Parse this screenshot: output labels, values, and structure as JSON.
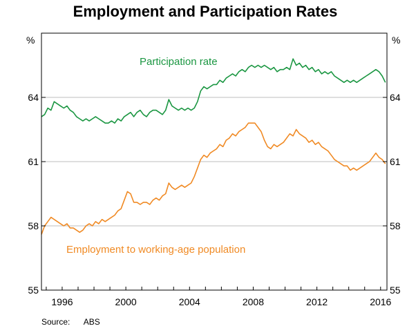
{
  "chart_data": {
    "type": "line",
    "title": "Employment and Participation Rates",
    "y_unit_left": "%",
    "y_unit_right": "%",
    "ylim": [
      55,
      67
    ],
    "yticks": [
      55,
      58,
      61,
      64
    ],
    "xlim": [
      1994.7,
      2016.4
    ],
    "xticks": [
      1996,
      2000,
      2004,
      2008,
      2012,
      2016
    ],
    "grid": true,
    "source": "Source:      ABS",
    "colors": {
      "participation": "#1a9641",
      "employment": "#f08a24"
    },
    "series": [
      {
        "name": "Participation rate",
        "color": "#1a9641",
        "points": [
          [
            1994.7,
            63.1
          ],
          [
            1994.9,
            63.2
          ],
          [
            1995.1,
            63.5
          ],
          [
            1995.3,
            63.4
          ],
          [
            1995.5,
            63.8
          ],
          [
            1995.7,
            63.7
          ],
          [
            1995.9,
            63.6
          ],
          [
            1996.1,
            63.5
          ],
          [
            1996.3,
            63.6
          ],
          [
            1996.5,
            63.4
          ],
          [
            1996.7,
            63.3
          ],
          [
            1996.9,
            63.1
          ],
          [
            1997.1,
            63.0
          ],
          [
            1997.3,
            62.9
          ],
          [
            1997.5,
            63.0
          ],
          [
            1997.7,
            62.9
          ],
          [
            1997.9,
            63.0
          ],
          [
            1998.1,
            63.1
          ],
          [
            1998.3,
            63.0
          ],
          [
            1998.5,
            62.9
          ],
          [
            1998.7,
            62.8
          ],
          [
            1998.9,
            62.8
          ],
          [
            1999.1,
            62.9
          ],
          [
            1999.3,
            62.8
          ],
          [
            1999.5,
            63.0
          ],
          [
            1999.7,
            62.9
          ],
          [
            1999.9,
            63.1
          ],
          [
            2000.1,
            63.2
          ],
          [
            2000.3,
            63.3
          ],
          [
            2000.5,
            63.1
          ],
          [
            2000.7,
            63.3
          ],
          [
            2000.9,
            63.4
          ],
          [
            2001.1,
            63.2
          ],
          [
            2001.3,
            63.1
          ],
          [
            2001.5,
            63.3
          ],
          [
            2001.7,
            63.4
          ],
          [
            2001.9,
            63.4
          ],
          [
            2002.1,
            63.3
          ],
          [
            2002.3,
            63.2
          ],
          [
            2002.5,
            63.4
          ],
          [
            2002.7,
            63.9
          ],
          [
            2002.9,
            63.6
          ],
          [
            2003.1,
            63.5
          ],
          [
            2003.3,
            63.4
          ],
          [
            2003.5,
            63.5
          ],
          [
            2003.7,
            63.4
          ],
          [
            2003.9,
            63.5
          ],
          [
            2004.1,
            63.4
          ],
          [
            2004.3,
            63.5
          ],
          [
            2004.5,
            63.8
          ],
          [
            2004.7,
            64.3
          ],
          [
            2004.9,
            64.5
          ],
          [
            2005.1,
            64.4
          ],
          [
            2005.3,
            64.5
          ],
          [
            2005.5,
            64.6
          ],
          [
            2005.7,
            64.6
          ],
          [
            2005.9,
            64.8
          ],
          [
            2006.1,
            64.7
          ],
          [
            2006.3,
            64.9
          ],
          [
            2006.5,
            65.0
          ],
          [
            2006.7,
            65.1
          ],
          [
            2006.9,
            65.0
          ],
          [
            2007.1,
            65.2
          ],
          [
            2007.3,
            65.3
          ],
          [
            2007.5,
            65.2
          ],
          [
            2007.7,
            65.4
          ],
          [
            2007.9,
            65.5
          ],
          [
            2008.1,
            65.4
          ],
          [
            2008.3,
            65.5
          ],
          [
            2008.5,
            65.4
          ],
          [
            2008.7,
            65.5
          ],
          [
            2008.9,
            65.4
          ],
          [
            2009.1,
            65.3
          ],
          [
            2009.3,
            65.4
          ],
          [
            2009.5,
            65.2
          ],
          [
            2009.7,
            65.3
          ],
          [
            2009.9,
            65.3
          ],
          [
            2010.1,
            65.4
          ],
          [
            2010.3,
            65.3
          ],
          [
            2010.5,
            65.8
          ],
          [
            2010.7,
            65.5
          ],
          [
            2010.9,
            65.6
          ],
          [
            2011.1,
            65.4
          ],
          [
            2011.3,
            65.5
          ],
          [
            2011.5,
            65.3
          ],
          [
            2011.7,
            65.4
          ],
          [
            2011.9,
            65.2
          ],
          [
            2012.1,
            65.3
          ],
          [
            2012.3,
            65.1
          ],
          [
            2012.5,
            65.2
          ],
          [
            2012.7,
            65.1
          ],
          [
            2012.9,
            65.2
          ],
          [
            2013.1,
            65.0
          ],
          [
            2013.3,
            64.9
          ],
          [
            2013.5,
            64.8
          ],
          [
            2013.7,
            64.7
          ],
          [
            2013.9,
            64.8
          ],
          [
            2014.1,
            64.7
          ],
          [
            2014.3,
            64.8
          ],
          [
            2014.5,
            64.7
          ],
          [
            2014.7,
            64.8
          ],
          [
            2014.9,
            64.9
          ],
          [
            2015.1,
            65.0
          ],
          [
            2015.3,
            65.1
          ],
          [
            2015.5,
            65.2
          ],
          [
            2015.7,
            65.3
          ],
          [
            2015.9,
            65.2
          ],
          [
            2016.1,
            65.0
          ],
          [
            2016.3,
            64.7
          ]
        ]
      },
      {
        "name": "Employment to working-age population",
        "color": "#f08a24",
        "points": [
          [
            1994.7,
            57.6
          ],
          [
            1994.9,
            58.0
          ],
          [
            1995.1,
            58.2
          ],
          [
            1995.3,
            58.4
          ],
          [
            1995.5,
            58.3
          ],
          [
            1995.7,
            58.2
          ],
          [
            1995.9,
            58.1
          ],
          [
            1996.1,
            58.0
          ],
          [
            1996.3,
            58.1
          ],
          [
            1996.5,
            57.9
          ],
          [
            1996.7,
            57.9
          ],
          [
            1996.9,
            57.8
          ],
          [
            1997.1,
            57.7
          ],
          [
            1997.3,
            57.8
          ],
          [
            1997.5,
            58.0
          ],
          [
            1997.7,
            58.1
          ],
          [
            1997.9,
            58.0
          ],
          [
            1998.1,
            58.2
          ],
          [
            1998.3,
            58.1
          ],
          [
            1998.5,
            58.3
          ],
          [
            1998.7,
            58.2
          ],
          [
            1998.9,
            58.3
          ],
          [
            1999.1,
            58.4
          ],
          [
            1999.3,
            58.5
          ],
          [
            1999.5,
            58.7
          ],
          [
            1999.7,
            58.8
          ],
          [
            1999.9,
            59.2
          ],
          [
            2000.1,
            59.6
          ],
          [
            2000.3,
            59.5
          ],
          [
            2000.5,
            59.1
          ],
          [
            2000.7,
            59.1
          ],
          [
            2000.9,
            59.0
          ],
          [
            2001.1,
            59.1
          ],
          [
            2001.3,
            59.1
          ],
          [
            2001.5,
            59.0
          ],
          [
            2001.7,
            59.2
          ],
          [
            2001.9,
            59.3
          ],
          [
            2002.1,
            59.2
          ],
          [
            2002.3,
            59.4
          ],
          [
            2002.5,
            59.5
          ],
          [
            2002.7,
            60.0
          ],
          [
            2002.9,
            59.8
          ],
          [
            2003.1,
            59.7
          ],
          [
            2003.3,
            59.8
          ],
          [
            2003.5,
            59.9
          ],
          [
            2003.7,
            59.8
          ],
          [
            2003.9,
            59.9
          ],
          [
            2004.1,
            60.0
          ],
          [
            2004.3,
            60.3
          ],
          [
            2004.5,
            60.7
          ],
          [
            2004.7,
            61.1
          ],
          [
            2004.9,
            61.3
          ],
          [
            2005.1,
            61.2
          ],
          [
            2005.3,
            61.4
          ],
          [
            2005.5,
            61.5
          ],
          [
            2005.7,
            61.6
          ],
          [
            2005.9,
            61.8
          ],
          [
            2006.1,
            61.7
          ],
          [
            2006.3,
            62.0
          ],
          [
            2006.5,
            62.1
          ],
          [
            2006.7,
            62.3
          ],
          [
            2006.9,
            62.2
          ],
          [
            2007.1,
            62.4
          ],
          [
            2007.3,
            62.5
          ],
          [
            2007.5,
            62.6
          ],
          [
            2007.7,
            62.8
          ],
          [
            2007.9,
            62.8
          ],
          [
            2008.1,
            62.8
          ],
          [
            2008.3,
            62.6
          ],
          [
            2008.5,
            62.4
          ],
          [
            2008.7,
            62.0
          ],
          [
            2008.9,
            61.7
          ],
          [
            2009.1,
            61.6
          ],
          [
            2009.3,
            61.8
          ],
          [
            2009.5,
            61.7
          ],
          [
            2009.7,
            61.8
          ],
          [
            2009.9,
            61.9
          ],
          [
            2010.1,
            62.1
          ],
          [
            2010.3,
            62.3
          ],
          [
            2010.5,
            62.2
          ],
          [
            2010.7,
            62.5
          ],
          [
            2010.9,
            62.3
          ],
          [
            2011.1,
            62.2
          ],
          [
            2011.3,
            62.1
          ],
          [
            2011.5,
            61.9
          ],
          [
            2011.7,
            62.0
          ],
          [
            2011.9,
            61.8
          ],
          [
            2012.1,
            61.9
          ],
          [
            2012.3,
            61.7
          ],
          [
            2012.5,
            61.6
          ],
          [
            2012.7,
            61.5
          ],
          [
            2012.9,
            61.3
          ],
          [
            2013.1,
            61.1
          ],
          [
            2013.3,
            61.0
          ],
          [
            2013.5,
            60.9
          ],
          [
            2013.7,
            60.8
          ],
          [
            2013.9,
            60.8
          ],
          [
            2014.1,
            60.6
          ],
          [
            2014.3,
            60.7
          ],
          [
            2014.5,
            60.6
          ],
          [
            2014.7,
            60.7
          ],
          [
            2014.9,
            60.8
          ],
          [
            2015.1,
            60.9
          ],
          [
            2015.3,
            61.0
          ],
          [
            2015.5,
            61.2
          ],
          [
            2015.7,
            61.4
          ],
          [
            2015.9,
            61.2
          ],
          [
            2016.1,
            61.1
          ],
          [
            2016.3,
            60.9
          ]
        ]
      }
    ]
  }
}
